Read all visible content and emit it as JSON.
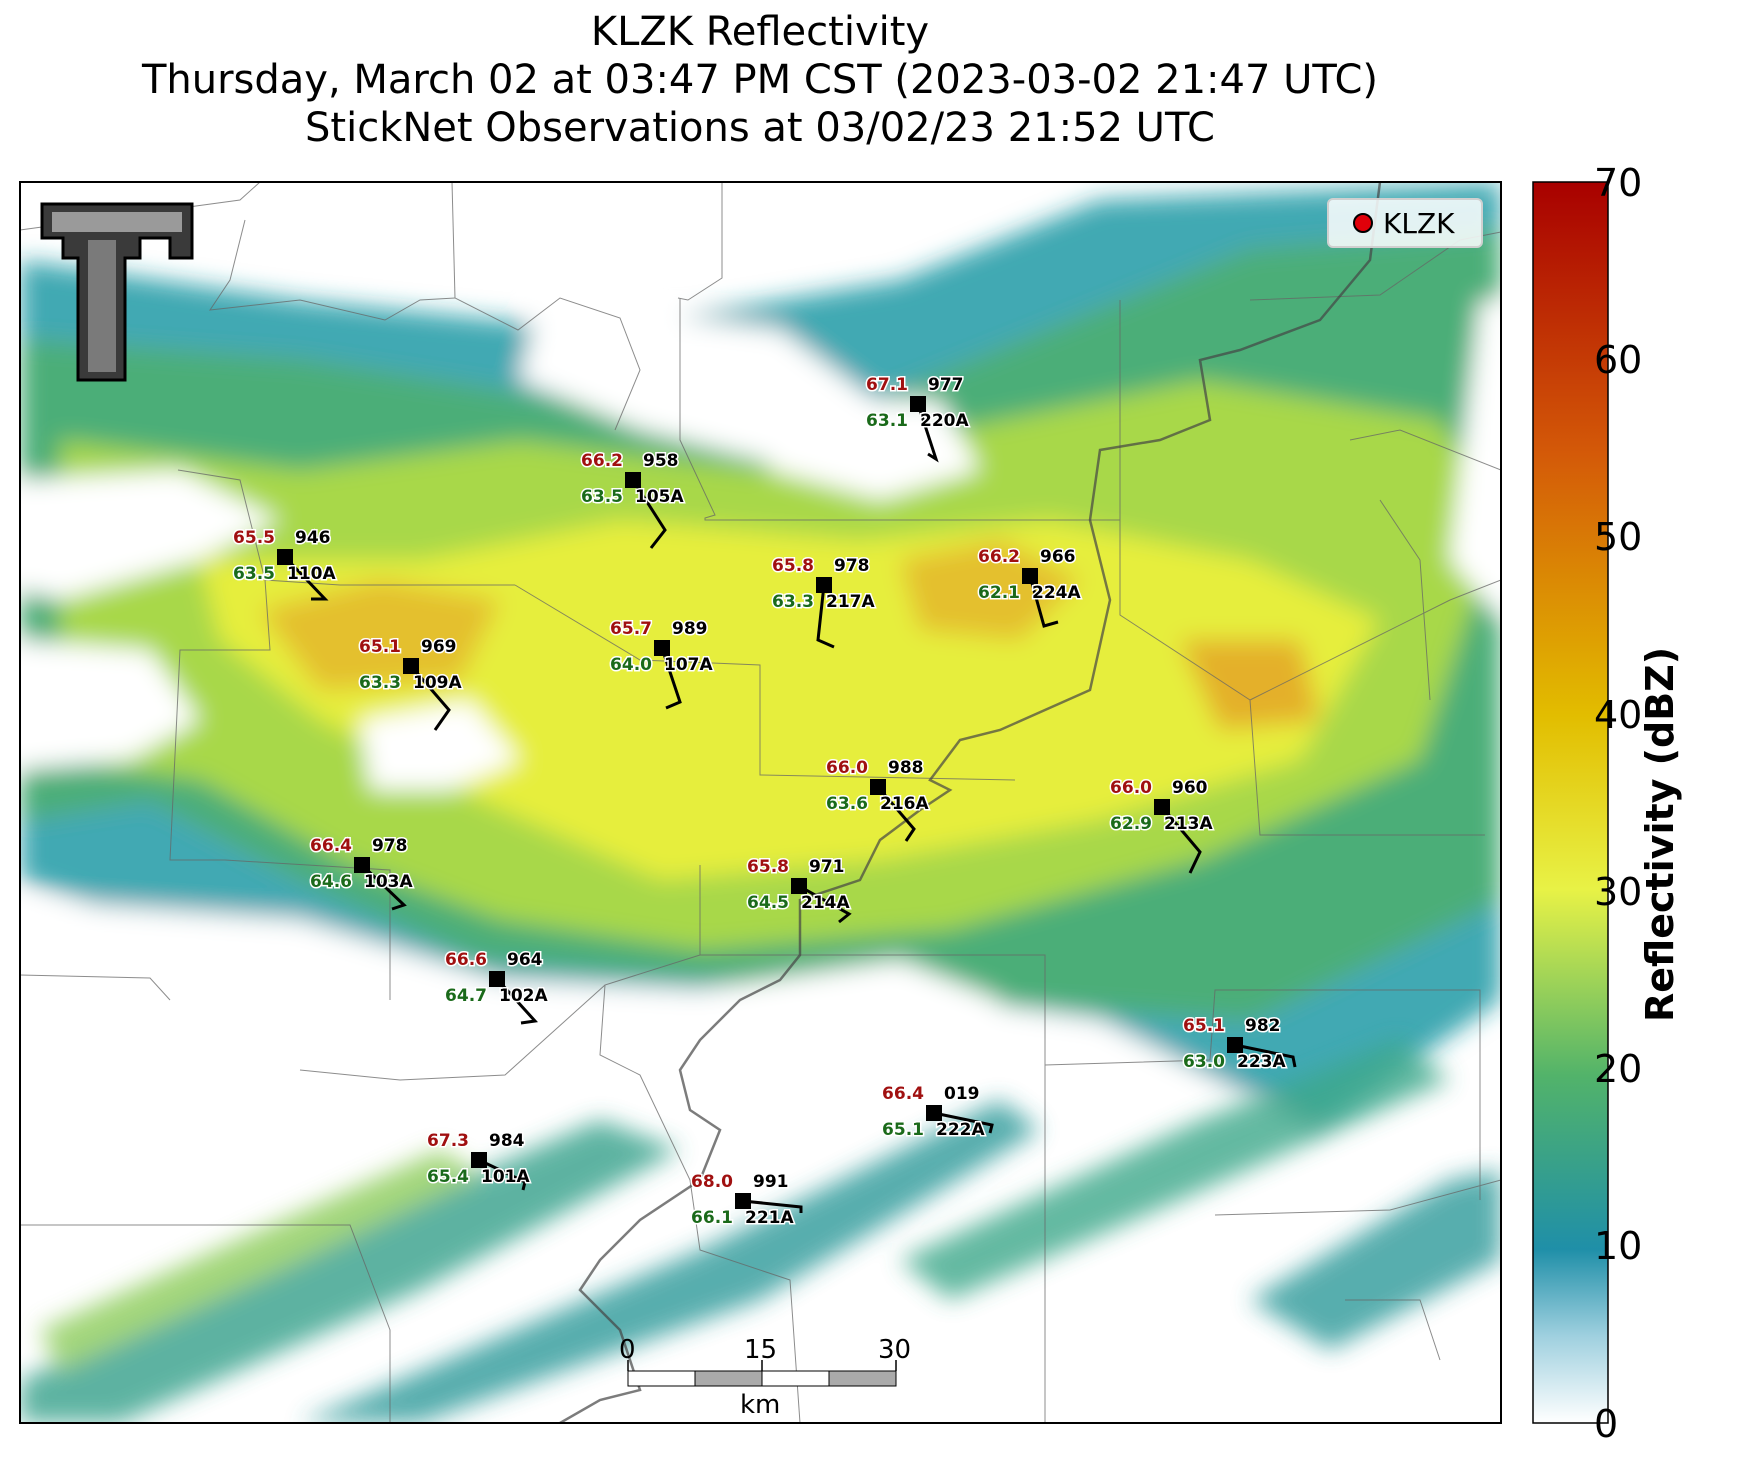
{
  "title": {
    "line1": "KLZK Reflectivity",
    "line2": "Thursday, March 02 at 03:47 PM CST (2023-03-02 21:47 UTC)",
    "line3": "StickNet Observations at 03/02/23 21:52 UTC"
  },
  "legend": {
    "label": "KLZK",
    "marker_color": "#e0000a"
  },
  "colorbar": {
    "label": "Reflectivity (dBZ)",
    "ticks": [
      "0",
      "10",
      "20",
      "30",
      "40",
      "50",
      "60",
      "70"
    ],
    "min": 0,
    "max": 70,
    "colors": [
      "#ffffff",
      "#1f8fa8",
      "#52b36a",
      "#e8f246",
      "#e2bd00",
      "#d45a08",
      "#a80000"
    ]
  },
  "scale_bar": {
    "ticks": [
      "0",
      "15",
      "30"
    ],
    "unit": "km"
  },
  "colors": {
    "temperature": "#a01010",
    "dewpoint": "#1a6a1a",
    "station": "#000000"
  },
  "stations": [
    {
      "id": "220A",
      "temp": "67.1",
      "dew": "63.1",
      "pres": "977"
    },
    {
      "id": "105A",
      "temp": "66.2",
      "dew": "63.5",
      "pres": "958"
    },
    {
      "id": "110A",
      "temp": "65.5",
      "dew": "63.5",
      "pres": "946"
    },
    {
      "id": "217A",
      "temp": "65.8",
      "dew": "63.3",
      "pres": "978"
    },
    {
      "id": "224A",
      "temp": "66.2",
      "dew": "62.1",
      "pres": "966"
    },
    {
      "id": "107A",
      "temp": "65.7",
      "dew": "64.0",
      "pres": "989"
    },
    {
      "id": "109A",
      "temp": "65.1",
      "dew": "63.3",
      "pres": "969"
    },
    {
      "id": "216A",
      "temp": "66.0",
      "dew": "63.6",
      "pres": "988"
    },
    {
      "id": "213A",
      "temp": "66.0",
      "dew": "62.9",
      "pres": "960"
    },
    {
      "id": "103A",
      "temp": "66.4",
      "dew": "64.6",
      "pres": "978"
    },
    {
      "id": "214A",
      "temp": "65.8",
      "dew": "64.5",
      "pres": "971"
    },
    {
      "id": "102A",
      "temp": "66.6",
      "dew": "64.7",
      "pres": "964"
    },
    {
      "id": "223A",
      "temp": "65.1",
      "dew": "63.0",
      "pres": "982"
    },
    {
      "id": "222A",
      "temp": "66.4",
      "dew": "65.1",
      "pres": "019"
    },
    {
      "id": "101A",
      "temp": "67.3",
      "dew": "65.4",
      "pres": "984"
    },
    {
      "id": "221A",
      "temp": "68.0",
      "dew": "66.1",
      "pres": "991"
    }
  ]
}
